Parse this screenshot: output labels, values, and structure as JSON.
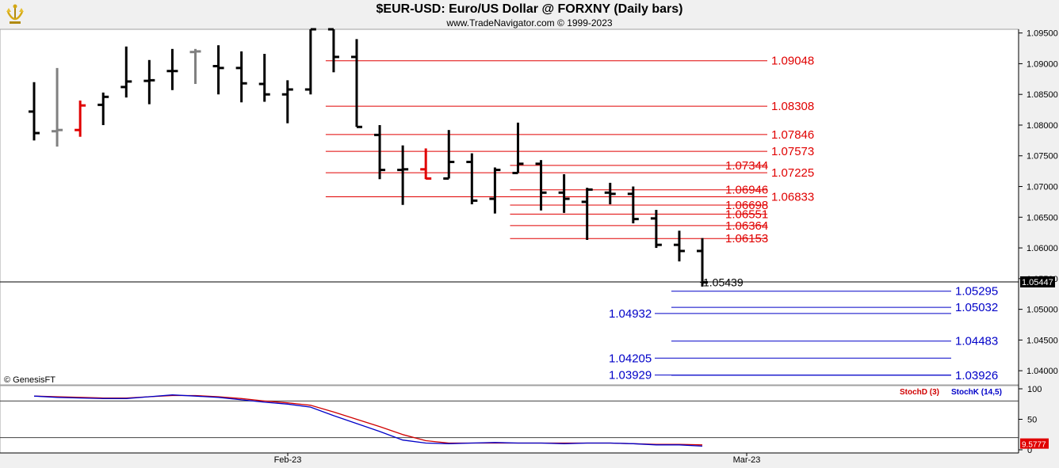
{
  "header": {
    "title": "$EUR-USD:  Euro/US Dollar @ FORXNY  (Daily bars)",
    "subtitle": "www.TradeNavigator.com © 1999-2023",
    "logo_icon": "gold-trophy-icon"
  },
  "footer": {
    "copyright": "© GenesisFT"
  },
  "colors": {
    "bar": "#000000",
    "bar_gray": "#808080",
    "bar_red": "#e00000",
    "resistance": "#e00000",
    "support": "#0000c8",
    "stoch_d": "#d00000",
    "stoch_k": "#0000c8",
    "price_box": "#000000"
  },
  "chart_data": [
    {
      "type": "ohlc",
      "title": "$EUR-USD:  Euro/US Dollar @ FORXNY  (Daily bars)",
      "y_ticks": [
        "1.09500",
        "1.09000",
        "1.08500",
        "1.08000",
        "1.07500",
        "1.07000",
        "1.06500",
        "1.06000",
        "1.05500",
        "1.05000",
        "1.04500",
        "1.04000"
      ],
      "ylim": [
        1.0377,
        1.0956
      ],
      "x_ticks": [
        "Feb-23",
        "Mar-23"
      ],
      "current_price": "1.05447",
      "last_close_label": "1.05439",
      "bars": [
        {
          "o": 1.0822,
          "h": 1.087,
          "l": 1.0775,
          "c": 1.0787,
          "color": "black"
        },
        {
          "o": 1.079,
          "h": 1.0893,
          "l": 1.0765,
          "c": 1.0792,
          "color": "gray"
        },
        {
          "o": 1.0792,
          "h": 1.084,
          "l": 1.0781,
          "c": 1.0832,
          "color": "red"
        },
        {
          "o": 1.0833,
          "h": 1.0853,
          "l": 1.08,
          "c": 1.0846,
          "color": "black"
        },
        {
          "o": 1.0862,
          "h": 1.0928,
          "l": 1.0845,
          "c": 1.0871,
          "color": "black"
        },
        {
          "o": 1.0872,
          "h": 1.0906,
          "l": 1.0834,
          "c": 1.0873,
          "color": "black"
        },
        {
          "o": 1.0888,
          "h": 1.0924,
          "l": 1.0857,
          "c": 1.0888,
          "color": "black"
        },
        {
          "o": 1.0919,
          "h": 1.0924,
          "l": 1.0867,
          "c": 1.092,
          "color": "gray"
        },
        {
          "o": 1.0896,
          "h": 1.093,
          "l": 1.085,
          "c": 1.0893,
          "color": "black"
        },
        {
          "o": 1.0893,
          "h": 1.092,
          "l": 1.0837,
          "c": 1.0868,
          "color": "black"
        },
        {
          "o": 1.0867,
          "h": 1.0916,
          "l": 1.0838,
          "c": 1.085,
          "color": "black"
        },
        {
          "o": 1.085,
          "h": 1.0873,
          "l": 1.0803,
          "c": 1.0858,
          "color": "black"
        },
        {
          "o": 1.0858,
          "h": 1.0956,
          "l": 1.085,
          "c": 1.0956,
          "color": "black"
        },
        {
          "o": 1.0956,
          "h": 1.0956,
          "l": 1.0886,
          "c": 1.0911,
          "color": "black"
        },
        {
          "o": 1.0911,
          "h": 1.094,
          "l": 1.0797,
          "c": 1.0797,
          "color": "black"
        },
        {
          "o": 1.0784,
          "h": 1.08,
          "l": 1.0712,
          "c": 1.0727,
          "color": "black"
        },
        {
          "o": 1.0727,
          "h": 1.0767,
          "l": 1.067,
          "c": 1.0728,
          "color": "black"
        },
        {
          "o": 1.0728,
          "h": 1.0762,
          "l": 1.0712,
          "c": 1.0713,
          "color": "red"
        },
        {
          "o": 1.0713,
          "h": 1.0792,
          "l": 1.0713,
          "c": 1.074,
          "color": "black"
        },
        {
          "o": 1.074,
          "h": 1.0754,
          "l": 1.0671,
          "c": 1.0677,
          "color": "black"
        },
        {
          "o": 1.068,
          "h": 1.0731,
          "l": 1.0656,
          "c": 1.0727,
          "color": "black"
        },
        {
          "o": 1.0722,
          "h": 1.0804,
          "l": 1.0722,
          "c": 1.0737,
          "color": "black"
        },
        {
          "o": 1.0737,
          "h": 1.0743,
          "l": 1.0661,
          "c": 1.069,
          "color": "black"
        },
        {
          "o": 1.069,
          "h": 1.072,
          "l": 1.0657,
          "c": 1.068,
          "color": "black"
        },
        {
          "o": 1.0675,
          "h": 1.0698,
          "l": 1.0613,
          "c": 1.0695,
          "color": "black"
        },
        {
          "o": 1.069,
          "h": 1.0706,
          "l": 1.0671,
          "c": 1.0688,
          "color": "black"
        },
        {
          "o": 1.0688,
          "h": 1.07,
          "l": 1.064,
          "c": 1.0647,
          "color": "black"
        },
        {
          "o": 1.0648,
          "h": 1.0662,
          "l": 1.06,
          "c": 1.0605,
          "color": "black"
        },
        {
          "o": 1.0605,
          "h": 1.0628,
          "l": 1.0578,
          "c": 1.0595,
          "color": "black"
        },
        {
          "o": 1.0595,
          "h": 1.0616,
          "l": 1.0537,
          "c": 1.0544,
          "color": "black"
        }
      ],
      "price_lines": [
        {
          "value": 1.09048,
          "label": "1.09048",
          "color": "red",
          "label_side": "right",
          "from_bar": 13
        },
        {
          "value": 1.08308,
          "label": "1.08308",
          "color": "red",
          "label_side": "right",
          "from_bar": 13
        },
        {
          "value": 1.07846,
          "label": "1.07846",
          "color": "red",
          "label_side": "right",
          "from_bar": 13
        },
        {
          "value": 1.07573,
          "label": "1.07573",
          "color": "red",
          "label_side": "right",
          "from_bar": 13
        },
        {
          "value": 1.07344,
          "label": "1.07344",
          "color": "red",
          "label_side": "left",
          "from_bar": 21
        },
        {
          "value": 1.07225,
          "label": "1.07225",
          "color": "red",
          "label_side": "right",
          "from_bar": 13
        },
        {
          "value": 1.06946,
          "label": "1.06946",
          "color": "red",
          "label_side": "left",
          "from_bar": 21
        },
        {
          "value": 1.06833,
          "label": "1.06833",
          "color": "red",
          "label_side": "right",
          "from_bar": 13
        },
        {
          "value": 1.06698,
          "label": "1.06698",
          "color": "red",
          "label_side": "left",
          "from_bar": 21
        },
        {
          "value": 1.06551,
          "label": "1.06551",
          "color": "red",
          "label_side": "left",
          "from_bar": 21
        },
        {
          "value": 1.06364,
          "label": "1.06364",
          "color": "red",
          "label_side": "left",
          "from_bar": 21
        },
        {
          "value": 1.06153,
          "label": "1.06153",
          "color": "red",
          "label_side": "left",
          "from_bar": 21
        },
        {
          "value": 1.05295,
          "label": "1.05295",
          "color": "blue",
          "label_side": "right",
          "from_bar": 28
        },
        {
          "value": 1.05032,
          "label": "1.05032",
          "color": "blue",
          "label_side": "right",
          "from_bar": 28
        },
        {
          "value": 1.04932,
          "label": "1.04932",
          "color": "blue",
          "label_side": "left",
          "from_bar": 28
        },
        {
          "value": 1.04483,
          "label": "1.04483",
          "color": "blue",
          "label_side": "right",
          "from_bar": 28
        },
        {
          "value": 1.04205,
          "label": "1.04205",
          "color": "blue",
          "label_side": "left",
          "from_bar": 28
        },
        {
          "value": 1.03929,
          "label": "1.03929",
          "color": "blue",
          "label_side": "left",
          "from_bar": 28
        },
        {
          "value": 1.03926,
          "label": "1.03926",
          "color": "blue",
          "label_side": "right",
          "from_bar": 28
        }
      ]
    },
    {
      "type": "line",
      "ylim": [
        0,
        100
      ],
      "y_ticks": [
        "100",
        "50",
        "0"
      ],
      "reference_levels": [
        80,
        20
      ],
      "current_value": "9.5777",
      "series": [
        {
          "name": "StochD (3)",
          "color": "red",
          "values": [
            88,
            87,
            86,
            85,
            85,
            87,
            89,
            89,
            87,
            84,
            80,
            77,
            73,
            62,
            50,
            38,
            25,
            15,
            11,
            11,
            11,
            11,
            11,
            11,
            11,
            11,
            10,
            9,
            9,
            8
          ]
        },
        {
          "name": "StochK (14,5)",
          "color": "blue",
          "values": [
            88,
            86,
            85,
            84,
            84,
            87,
            90,
            88,
            86,
            82,
            78,
            75,
            70,
            56,
            43,
            30,
            16,
            11,
            10,
            11,
            12,
            11,
            11,
            10,
            11,
            11,
            10,
            8,
            8,
            6
          ]
        }
      ]
    }
  ]
}
